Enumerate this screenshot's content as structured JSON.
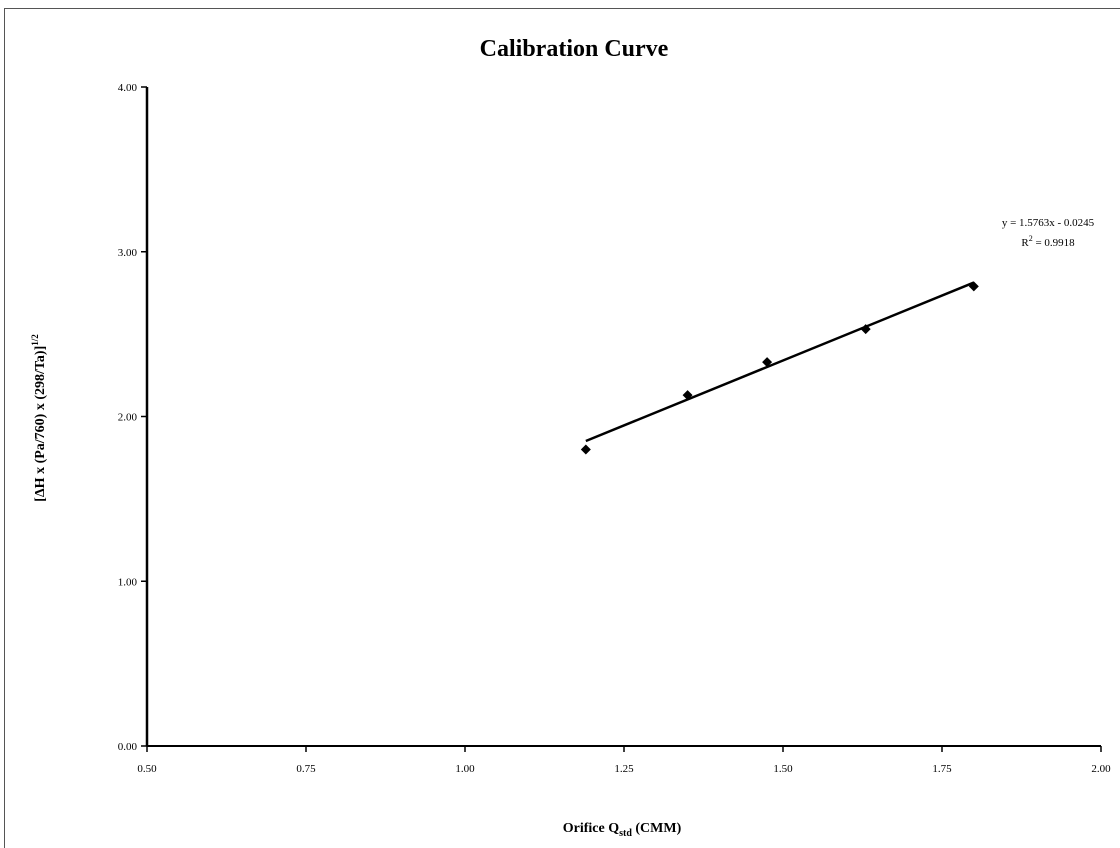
{
  "chart_data": {
    "type": "scatter",
    "title": "Calibration Curve",
    "xlabel": {
      "main": "Orifice Q",
      "subscript": "std",
      "suffix": " (CMM)"
    },
    "ylabel": {
      "main": "[ΔH x (Pa/760) x (298/Ta)]",
      "superscript": "1/2"
    },
    "xlim": [
      0.5,
      2.0
    ],
    "ylim": [
      0.0,
      4.0
    ],
    "x_ticks": [
      0.5,
      0.75,
      1.0,
      1.25,
      1.5,
      1.75,
      2.0
    ],
    "x_tick_labels": [
      "0.50",
      "0.75",
      "1.00",
      "1.25",
      "1.50",
      "1.75",
      "2.00"
    ],
    "y_ticks": [
      0.0,
      1.0,
      2.0,
      3.0,
      4.0
    ],
    "y_tick_labels": [
      "0.00",
      "1.00",
      "2.00",
      "3.00",
      "4.00"
    ],
    "grid": false,
    "legend": "none",
    "series": [
      {
        "marker": "diamond",
        "color": "#000000",
        "x": [
          1.19,
          1.35,
          1.475,
          1.63,
          1.8
        ],
        "y": [
          1.8,
          2.13,
          2.33,
          2.53,
          2.79
        ]
      }
    ],
    "trendline": {
      "type": "linear",
      "slope": 1.5763,
      "intercept": -0.0245,
      "x_range": [
        1.19,
        1.8
      ],
      "color": "#000000"
    },
    "annotations": {
      "equation": "y = 1.5763x - 0.0245",
      "r2_prefix": "R",
      "r2_superscript": "2",
      "r2_suffix": " = 0.9918"
    }
  }
}
